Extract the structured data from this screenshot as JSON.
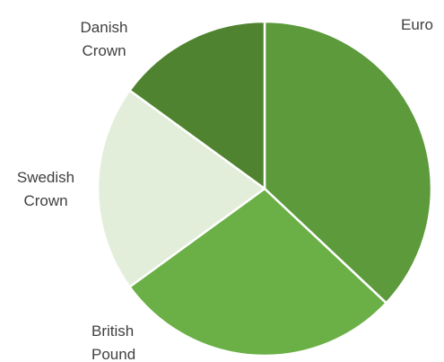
{
  "chart_data": {
    "type": "pie",
    "title": "",
    "categories": [
      "Euro",
      "British Pound",
      "Swedish Crown",
      "Danish Crown"
    ],
    "label_lines": [
      [
        "Euro"
      ],
      [
        "British",
        "Pound"
      ],
      [
        "Swedish",
        "Crown"
      ],
      [
        "Danish",
        "Crown"
      ]
    ],
    "values": [
      37,
      28,
      20,
      15
    ],
    "value_unit": "percent",
    "colors": [
      "#5c9a3b",
      "#6ab046",
      "#e2eed9",
      "#4f832f"
    ],
    "legend": "none",
    "start_angle_deg": 0,
    "direction": "clockwise"
  }
}
